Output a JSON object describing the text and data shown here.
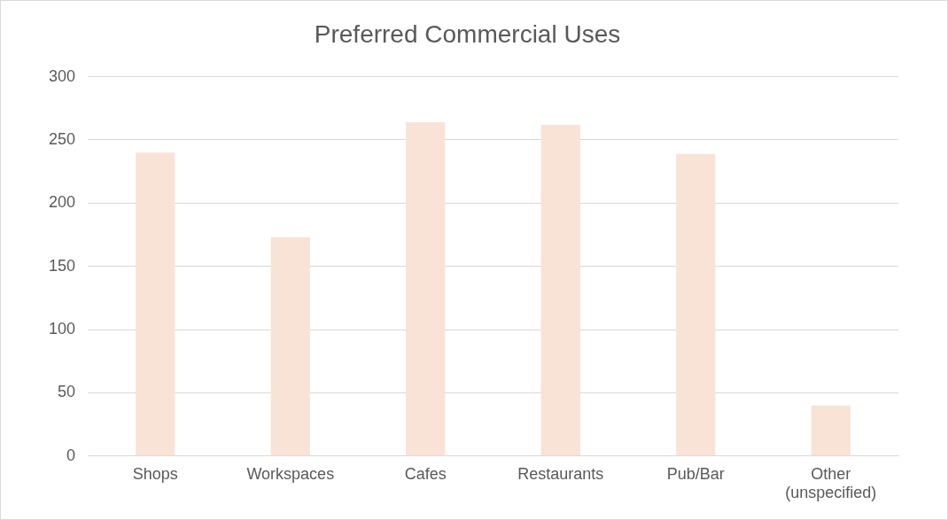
{
  "chart_data": {
    "type": "bar",
    "title": "Preferred Commercial Uses",
    "categories": [
      "Shops",
      "Workspaces",
      "Cafes",
      "Restaurants",
      "Pub/Bar",
      "Other (unspecified)"
    ],
    "values": [
      240,
      173,
      264,
      262,
      239,
      40
    ],
    "color": "#f9e3d6",
    "ylim": [
      0,
      300
    ],
    "yticks": [
      0,
      50,
      100,
      150,
      200,
      250,
      300
    ],
    "grid": "y",
    "legend": false
  }
}
